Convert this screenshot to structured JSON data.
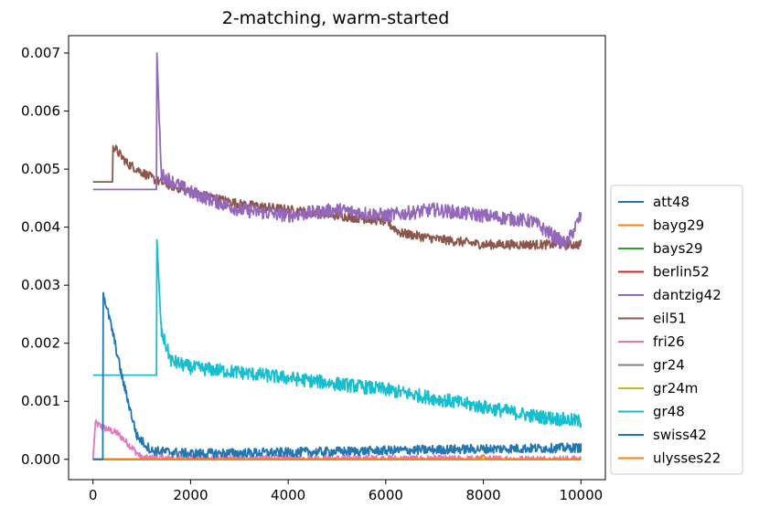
{
  "chart_data": {
    "type": "line",
    "title": "2-matching, warm-started",
    "xlabel": "",
    "ylabel": "",
    "xlim": [
      -500,
      10500
    ],
    "ylim": [
      -0.00035,
      0.0073
    ],
    "x_ticks": [
      0,
      2000,
      4000,
      6000,
      8000,
      10000
    ],
    "x_tick_labels": [
      "0",
      "2000",
      "4000",
      "6000",
      "8000",
      "10000"
    ],
    "y_ticks": [
      0.0,
      0.001,
      0.002,
      0.003,
      0.004,
      0.005,
      0.006,
      0.007
    ],
    "y_tick_labels": [
      "0.000",
      "0.001",
      "0.002",
      "0.003",
      "0.004",
      "0.005",
      "0.006",
      "0.007"
    ],
    "legend_position": "right",
    "series": [
      {
        "name": "att48",
        "color": "#1f77b4",
        "values": [
          [
            0,
            0
          ],
          [
            10000,
            0
          ]
        ]
      },
      {
        "name": "bayg29",
        "color": "#ff7f0e",
        "values": [
          [
            0,
            0
          ],
          [
            10000,
            0
          ]
        ]
      },
      {
        "name": "bays29",
        "color": "#2ca02c",
        "values": [
          [
            0,
            0
          ],
          [
            10000,
            0
          ]
        ]
      },
      {
        "name": "berlin52",
        "color": "#d62728",
        "values": [
          [
            0,
            0
          ],
          [
            10000,
            0
          ]
        ]
      },
      {
        "name": "dantzig42",
        "color": "#9467bd",
        "values": [
          [
            0,
            0.00465
          ],
          [
            1300,
            0.00465
          ],
          [
            1310,
            0.007
          ],
          [
            1400,
            0.0049
          ],
          [
            2000,
            0.0046
          ],
          [
            3000,
            0.0043
          ],
          [
            4000,
            0.0042
          ],
          [
            5000,
            0.0043
          ],
          [
            6000,
            0.0042
          ],
          [
            7000,
            0.0043
          ],
          [
            8000,
            0.0042
          ],
          [
            9000,
            0.0041
          ],
          [
            9700,
            0.0037
          ],
          [
            10000,
            0.0042
          ]
        ]
      },
      {
        "name": "eil51",
        "color": "#8c564b",
        "values": [
          [
            0,
            0.00478
          ],
          [
            400,
            0.00478
          ],
          [
            410,
            0.0054
          ],
          [
            700,
            0.0051
          ],
          [
            1300,
            0.0048
          ],
          [
            2000,
            0.0046
          ],
          [
            3000,
            0.0044
          ],
          [
            4000,
            0.0043
          ],
          [
            5000,
            0.0042
          ],
          [
            6000,
            0.0041
          ],
          [
            6300,
            0.0039
          ],
          [
            7000,
            0.0038
          ],
          [
            8000,
            0.0037
          ],
          [
            9000,
            0.0037
          ],
          [
            10000,
            0.0037
          ]
        ]
      },
      {
        "name": "fri26",
        "color": "#e377c2",
        "values": [
          [
            0,
            0
          ],
          [
            50,
            0.00062
          ],
          [
            200,
            0.00055
          ],
          [
            500,
            0.00045
          ],
          [
            800,
            0.0002
          ],
          [
            1000,
            2e-05
          ],
          [
            10000,
            0
          ]
        ]
      },
      {
        "name": "gr24",
        "color": "#7f7f7f",
        "values": [
          [
            0,
            0
          ],
          [
            10000,
            0
          ]
        ]
      },
      {
        "name": "gr24m",
        "color": "#bcbd22",
        "values": [
          [
            0,
            0
          ],
          [
            10000,
            0
          ]
        ]
      },
      {
        "name": "gr48",
        "color": "#17becf",
        "values": [
          [
            0,
            0.00145
          ],
          [
            1300,
            0.00145
          ],
          [
            1310,
            0.00378
          ],
          [
            1400,
            0.0022
          ],
          [
            1600,
            0.0017
          ],
          [
            2000,
            0.00158
          ],
          [
            3000,
            0.0015
          ],
          [
            4000,
            0.0014
          ],
          [
            5000,
            0.0013
          ],
          [
            6000,
            0.0012
          ],
          [
            7000,
            0.00105
          ],
          [
            8000,
            0.0009
          ],
          [
            9000,
            0.00075
          ],
          [
            10000,
            0.00065
          ]
        ]
      },
      {
        "name": "swiss42",
        "color": "#1f77b4",
        "values": [
          [
            0,
            0
          ],
          [
            200,
            0
          ],
          [
            210,
            0.00287
          ],
          [
            400,
            0.0022
          ],
          [
            600,
            0.0014
          ],
          [
            900,
            0.0004
          ],
          [
            1200,
            0.00015
          ],
          [
            2000,
            0.0001
          ],
          [
            4000,
            0.00012
          ],
          [
            6000,
            0.00015
          ],
          [
            8000,
            0.00018
          ],
          [
            10000,
            0.0002
          ]
        ]
      },
      {
        "name": "ulysses22",
        "color": "#ff7f0e",
        "values": [
          [
            0,
            0
          ],
          [
            7900,
            0
          ],
          [
            8000,
            8e-05
          ],
          [
            8050,
            0
          ],
          [
            10000,
            0
          ]
        ]
      }
    ]
  }
}
